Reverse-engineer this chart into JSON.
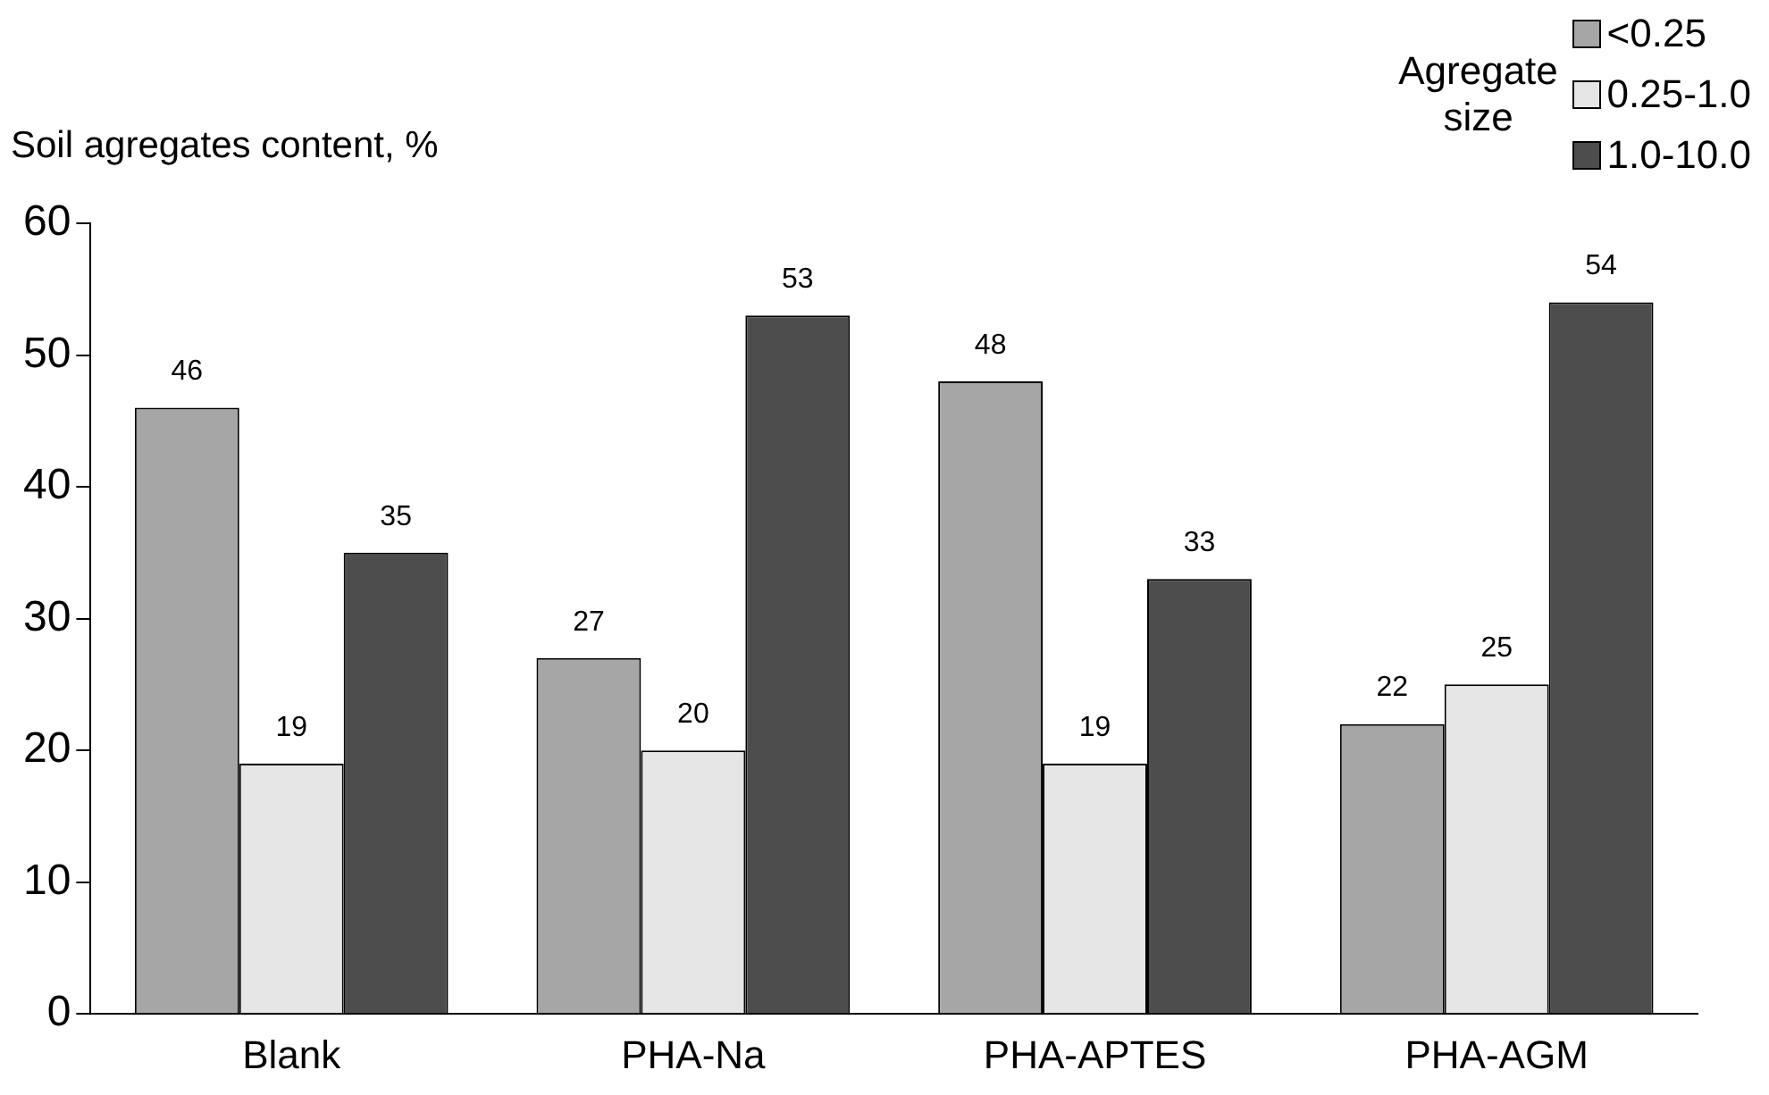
{
  "chart_data": {
    "type": "bar",
    "ylabel": "Soil agregates content, %",
    "legend_title": "Agregate size",
    "categories": [
      "Blank",
      "PHA-Na",
      "PHA-APTES",
      "PHA-AGM"
    ],
    "series": [
      {
        "name": "<0.25",
        "color": "#a6a6a6",
        "values": [
          46,
          27,
          48,
          22
        ]
      },
      {
        "name": "0.25-1.0",
        "color": "#e6e6e6",
        "values": [
          19,
          20,
          19,
          25
        ]
      },
      {
        "name": "1.0-10.0",
        "color": "#4d4d4d",
        "values": [
          35,
          53,
          33,
          54
        ]
      }
    ],
    "ylim": [
      0,
      60
    ],
    "yticks": [
      0,
      10,
      20,
      30,
      40,
      50,
      60
    ],
    "grid": false,
    "legend": "top right",
    "data_labels": true
  }
}
